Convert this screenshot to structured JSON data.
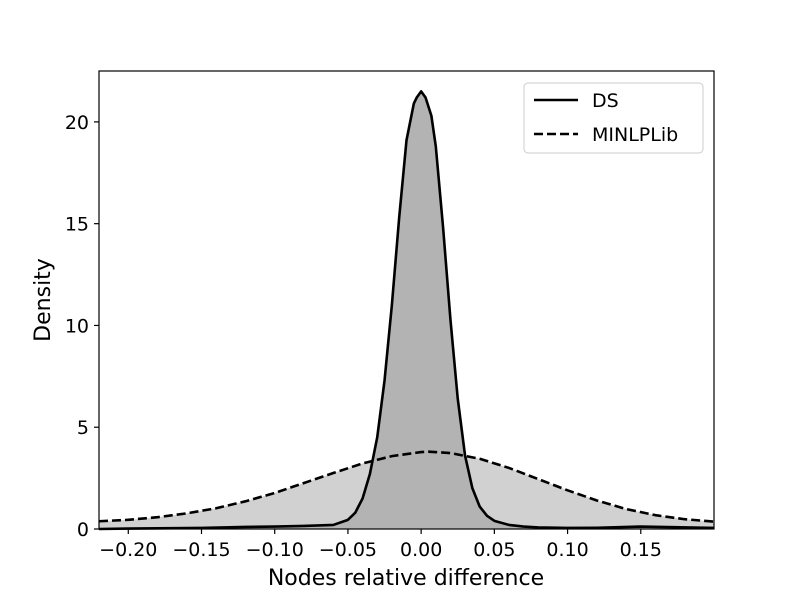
{
  "chart_data": {
    "type": "area",
    "title": "",
    "xlabel": "Nodes relative difference",
    "ylabel": "Density",
    "xlim": [
      -0.22,
      0.2
    ],
    "ylim": [
      0,
      22.5
    ],
    "xticks": [
      -0.2,
      -0.15,
      -0.1,
      -0.05,
      0.0,
      0.05,
      0.1,
      0.15
    ],
    "xtick_labels": [
      "−0.20",
      "−0.15",
      "−0.10",
      "−0.05",
      "0.00",
      "0.05",
      "0.10",
      "0.15"
    ],
    "yticks": [
      0,
      5,
      10,
      15,
      20
    ],
    "ytick_labels": [
      "0",
      "5",
      "10",
      "15",
      "20"
    ],
    "grid": false,
    "legend": "top-right",
    "series": [
      {
        "name": "DS",
        "line_style": "solid",
        "line_color": "#000000",
        "fill_color": "#808080",
        "x": [
          -0.22,
          -0.2,
          -0.15,
          -0.12,
          -0.1,
          -0.08,
          -0.06,
          -0.05,
          -0.045,
          -0.04,
          -0.035,
          -0.03,
          -0.025,
          -0.02,
          -0.015,
          -0.01,
          -0.005,
          -0.003,
          0.0,
          0.003,
          0.007,
          0.01,
          0.015,
          0.02,
          0.025,
          0.03,
          0.035,
          0.04,
          0.045,
          0.05,
          0.06,
          0.07,
          0.08,
          0.1,
          0.12,
          0.15,
          0.2
        ],
        "y": [
          0.0,
          0.02,
          0.05,
          0.1,
          0.12,
          0.15,
          0.2,
          0.45,
          0.8,
          1.5,
          2.7,
          4.5,
          7.3,
          11.0,
          15.3,
          19.1,
          20.9,
          21.2,
          21.5,
          21.2,
          20.3,
          18.8,
          14.8,
          10.3,
          6.4,
          3.6,
          2.0,
          1.1,
          0.65,
          0.4,
          0.2,
          0.12,
          0.08,
          0.05,
          0.06,
          0.12,
          0.05
        ]
      },
      {
        "name": "MINLPLib",
        "line_style": "dashed",
        "line_color": "#000000",
        "fill_color": "#b2b2b2",
        "x": [
          -0.22,
          -0.2,
          -0.18,
          -0.16,
          -0.14,
          -0.12,
          -0.1,
          -0.08,
          -0.06,
          -0.04,
          -0.02,
          0.0,
          0.005,
          0.02,
          0.04,
          0.06,
          0.08,
          0.1,
          0.12,
          0.14,
          0.16,
          0.18,
          0.2
        ],
        "y": [
          0.38,
          0.45,
          0.58,
          0.77,
          1.02,
          1.36,
          1.77,
          2.26,
          2.75,
          3.22,
          3.58,
          3.78,
          3.8,
          3.73,
          3.45,
          3.0,
          2.45,
          1.9,
          1.4,
          0.98,
          0.68,
          0.48,
          0.36
        ]
      }
    ]
  }
}
